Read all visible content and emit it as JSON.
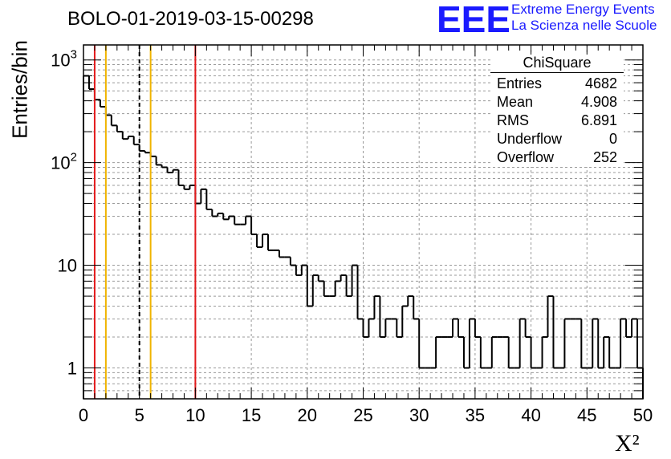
{
  "header": {
    "run_title": "BOLO-01-2019-03-15-00298",
    "logo_text": "EEE",
    "brand_line1": "Extreme Energy Events",
    "brand_line2": "La Scienza nelle Scuole"
  },
  "stats": {
    "title": "ChiSquare",
    "rows": [
      {
        "label": "Entries",
        "value": "4682"
      },
      {
        "label": "Mean",
        "value": "4.908"
      },
      {
        "label": "RMS",
        "value": "6.891"
      },
      {
        "label": "Underflow",
        "value": "0"
      },
      {
        "label": "Overflow",
        "value": "252"
      }
    ]
  },
  "chart_data": {
    "type": "histogram",
    "title": "BOLO-01-2019-03-15-00298",
    "xlabel": "X²",
    "ylabel": "Entries/bin",
    "xlim": [
      0,
      50
    ],
    "ylim": [
      0.5,
      1400
    ],
    "yscale": "log",
    "grid": true,
    "bin_width": 0.5,
    "x_ticks": [
      "0",
      "5",
      "10",
      "15",
      "20",
      "25",
      "30",
      "35",
      "40",
      "45",
      "50"
    ],
    "y_ticks": [
      {
        "value": 1,
        "label": "1"
      },
      {
        "value": 10,
        "label": "10"
      },
      {
        "value": 100,
        "label": "10²"
      },
      {
        "value": 1000,
        "label": "10³"
      }
    ],
    "values": [
      700,
      520,
      410,
      350,
      290,
      230,
      200,
      170,
      180,
      150,
      130,
      125,
      115,
      95,
      90,
      80,
      85,
      60,
      55,
      60,
      40,
      55,
      35,
      30,
      32,
      28,
      30,
      25,
      25,
      30,
      20,
      15,
      20,
      14,
      14,
      12,
      12,
      10,
      8,
      10,
      4,
      8,
      7,
      5,
      5,
      7,
      8,
      5,
      10,
      3,
      2,
      3,
      5,
      2,
      3,
      3,
      2,
      4,
      5,
      3,
      1,
      1,
      1,
      2,
      2,
      2,
      3,
      2,
      1,
      3,
      2,
      1,
      1,
      2,
      2,
      2,
      1,
      1,
      3,
      2,
      1,
      1,
      2,
      5,
      1,
      1,
      3,
      3,
      3,
      1,
      1,
      3,
      1,
      2,
      1,
      1,
      3,
      2,
      3,
      1
    ],
    "reference_lines": [
      {
        "x": 1,
        "color": "#e31a1c",
        "style": "solid"
      },
      {
        "x": 2,
        "color": "#f0b400",
        "style": "solid"
      },
      {
        "x": 5,
        "color": "#000000",
        "style": "dashed"
      },
      {
        "x": 6,
        "color": "#f0b400",
        "style": "solid"
      },
      {
        "x": 10,
        "color": "#e31a1c",
        "style": "solid"
      }
    ]
  }
}
